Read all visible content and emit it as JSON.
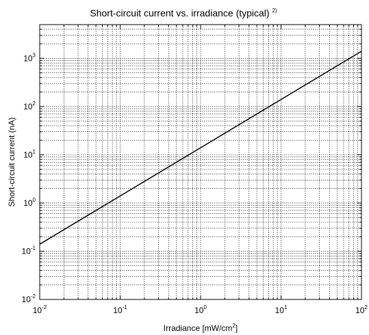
{
  "chart_data": {
    "type": "line",
    "title": "Short-circuit current vs. irradiance (typical)",
    "title_note": "2)",
    "xlabel": "Irradiance [mW/cm",
    "xlabel_superscript": "2",
    "xlabel_suffix": "]",
    "ylabel": "Short-circuit current (nA)",
    "x_scale": "log",
    "y_scale": "log",
    "xlim": [
      0.01,
      100
    ],
    "ylim": [
      0.01,
      5000
    ],
    "grid": true,
    "x_ticks": [
      {
        "base": "10",
        "exp": "-2",
        "value": 0.01
      },
      {
        "base": "10",
        "exp": "-1",
        "value": 0.1
      },
      {
        "base": "10",
        "exp": "0",
        "value": 1
      },
      {
        "base": "10",
        "exp": "1",
        "value": 10
      },
      {
        "base": "10",
        "exp": "2",
        "value": 100
      }
    ],
    "y_ticks": [
      {
        "base": "10",
        "exp": "-2",
        "value": 0.01
      },
      {
        "base": "10",
        "exp": "-1",
        "value": 0.1
      },
      {
        "base": "10",
        "exp": "0",
        "value": 1
      },
      {
        "base": "10",
        "exp": "1",
        "value": 10
      },
      {
        "base": "10",
        "exp": "2",
        "value": 100
      },
      {
        "base": "10",
        "exp": "3",
        "value": 1000
      }
    ],
    "series": [
      {
        "x": [
          0.01,
          0.1,
          1,
          10,
          100
        ],
        "y": [
          0.14,
          1.4,
          14,
          140,
          1400
        ]
      }
    ]
  },
  "colors": {
    "line": "#000000",
    "grid": "#000000",
    "background": "#ffffff"
  }
}
